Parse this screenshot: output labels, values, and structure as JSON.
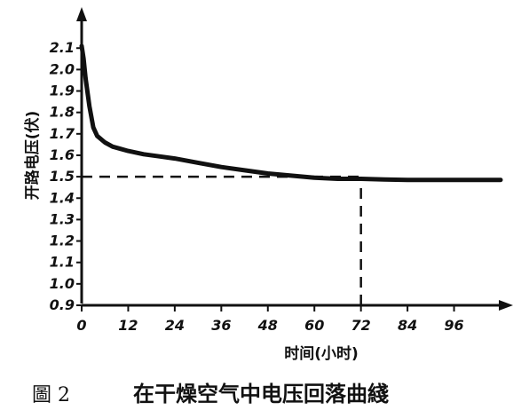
{
  "chart_data": {
    "type": "line",
    "figure_label": "圖 2",
    "title": "在干燥空气中电压回落曲綫",
    "xlabel": "时间(小时)",
    "ylabel": "开路电压(伏)",
    "x_tick_labels": [
      "0",
      "12",
      "24",
      "36",
      "48",
      "60",
      "72",
      "84",
      "96"
    ],
    "x_tick_values": [
      0,
      12,
      24,
      36,
      48,
      60,
      72,
      84,
      96
    ],
    "y_tick_labels": [
      "0.9",
      "1.0",
      "1.1",
      "1.2",
      "1.3",
      "1.4",
      "1.5",
      "1.6",
      "1.7",
      "1.8",
      "1.9",
      "2.0",
      "2.1"
    ],
    "y_tick_values": [
      0.9,
      1.0,
      1.1,
      1.2,
      1.3,
      1.4,
      1.5,
      1.6,
      1.7,
      1.8,
      1.9,
      2.0,
      2.1
    ],
    "xlim": [
      0,
      108
    ],
    "ylim": [
      0.9,
      2.25
    ],
    "grid": false,
    "series": [
      {
        "x": [
          0,
          0.5,
          1,
          2,
          3,
          4,
          6,
          8,
          10,
          12,
          16,
          20,
          24,
          30,
          36,
          42,
          48,
          54,
          60,
          66,
          72,
          78,
          84,
          90,
          96,
          102,
          108
        ],
        "y": [
          2.11,
          2.05,
          1.96,
          1.83,
          1.73,
          1.69,
          1.66,
          1.64,
          1.63,
          1.62,
          1.605,
          1.595,
          1.585,
          1.565,
          1.545,
          1.53,
          1.515,
          1.505,
          1.495,
          1.49,
          1.49,
          1.487,
          1.485,
          1.485,
          1.485,
          1.485,
          1.485
        ]
      }
    ],
    "reference_lines": [
      {
        "orientation": "horizontal",
        "y": 1.5,
        "x_from": 0,
        "x_to": 72,
        "style": "dashed"
      },
      {
        "orientation": "vertical",
        "x": 72,
        "y_from": 0.9,
        "y_to": 1.5,
        "style": "dashed"
      }
    ]
  }
}
